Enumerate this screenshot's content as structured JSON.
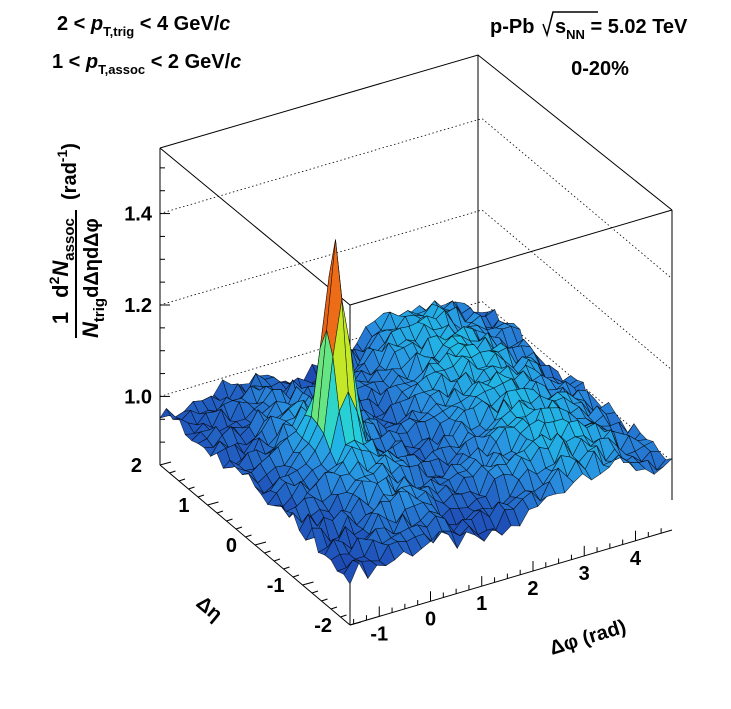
{
  "chart_data": {
    "type": "surface",
    "header": {
      "trig_prefix": "2 <",
      "trig_p": "p",
      "trig_sub": "T,trig",
      "trig_suffix": "< 4 GeV/",
      "trig_c": "c",
      "assoc_prefix": "1 <",
      "assoc_p": "p",
      "assoc_sub": "T,assoc",
      "assoc_suffix": "< 2 GeV/",
      "assoc_c": "c",
      "system_prefix": "p-Pb",
      "sqrt_s": "s",
      "sqrt_sub": "NN",
      "energy": "= 5.02 TeV",
      "centrality": "0-20%"
    },
    "zaxis": {
      "label_one": "1",
      "label_ntrig_n": "N",
      "label_ntrig_sub": "trig",
      "label_num_pre": "d",
      "label_num_sup": "2",
      "label_num_n": "N",
      "label_num_sub": "assoc",
      "label_den": "dΔηdΔφ",
      "label_unit_pre": "(rad",
      "label_unit_sup": "-1",
      "label_unit_post": ")",
      "ticks": [
        "1.4",
        "1.2",
        "1.0"
      ],
      "tick_values": [
        1.4,
        1.2,
        1.0
      ],
      "range": [
        0.85,
        1.55
      ]
    },
    "xaxis": {
      "label": "Δφ (rad)",
      "ticks": [
        "-1",
        "0",
        "1",
        "2",
        "3",
        "4"
      ],
      "tick_values": [
        -1,
        0,
        1,
        2,
        3,
        4
      ],
      "range": [
        -1.5708,
        4.7124
      ]
    },
    "yaxis": {
      "label": "Δη",
      "ticks": [
        "2",
        "1",
        "0",
        "-1",
        "-2"
      ],
      "tick_values": [
        2,
        1,
        0,
        -1,
        -2
      ],
      "range": [
        -2,
        2
      ]
    },
    "surface": {
      "baseline": 0.97,
      "nearside_peak": 1.435,
      "nearside_width_phi": 0.17,
      "nearside_width_eta": 0.17,
      "awayside_amplitude": 0.085,
      "awayside_center_phi": 3.1416,
      "awayside_width_phi": 0.95,
      "ridge_amplitude": 0.03,
      "colormap": [
        "#142a8a",
        "#1f4fb8",
        "#2a8fe0",
        "#1ec8e8",
        "#3fe0b0",
        "#b8ee2a",
        "#f5d21a",
        "#f07818",
        "#d0230e",
        "#8a0a0a"
      ]
    }
  }
}
